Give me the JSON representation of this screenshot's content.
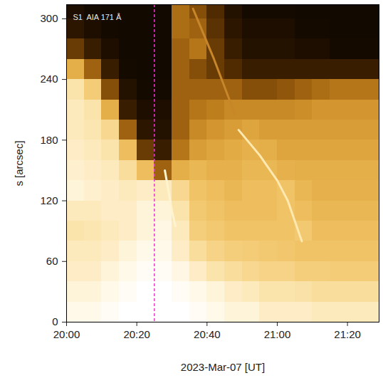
{
  "chart_data": {
    "type": "heatmap",
    "annotation": "S1  AIA 171 Å",
    "xlabel": "2023-Mar-07 [UT]",
    "ylabel": "s [arcsec]",
    "xlim": [
      "2023-03-07T20:00",
      "2023-03-07T21:29"
    ],
    "xticks": [
      {
        "value": "2023-03-07T20:00",
        "label": "20:00"
      },
      {
        "value": "2023-03-07T20:20",
        "label": "20:20"
      },
      {
        "value": "2023-03-07T20:40",
        "label": "20:40"
      },
      {
        "value": "2023-03-07T21:00",
        "label": "21:00"
      },
      {
        "value": "2023-03-07T21:20",
        "label": "21:20"
      }
    ],
    "ylim": [
      0,
      314
    ],
    "yticks": [
      0,
      60,
      120,
      180,
      240,
      300
    ],
    "heatmap": {
      "x_edges": [
        "2023-03-07T20:00",
        "2023-03-07T20:05",
        "2023-03-07T20:10",
        "2023-03-07T20:15",
        "2023-03-07T20:20",
        "2023-03-07T20:25",
        "2023-03-07T20:30",
        "2023-03-07T20:35",
        "2023-03-07T20:40",
        "2023-03-07T20:45",
        "2023-03-07T20:50",
        "2023-03-07T20:55",
        "2023-03-07T21:00",
        "2023-03-07T21:05",
        "2023-03-07T21:10",
        "2023-03-07T21:15",
        "2023-03-07T21:20",
        "2023-03-07T21:25",
        "2023-03-07T21:30"
      ],
      "y_edges": [
        0,
        20,
        40,
        60,
        80,
        100,
        120,
        140,
        160,
        180,
        200,
        220,
        240,
        260,
        280,
        300,
        320
      ],
      "zlim": [
        0,
        1
      ],
      "values": [
        [
          0.9,
          0.9,
          0.95,
          1,
          1,
          1,
          1,
          0.95,
          0.9,
          0.85,
          0.85,
          0.8,
          0.8,
          0.8,
          0.78,
          0.78,
          0.78,
          0.78
        ],
        [
          0.85,
          0.85,
          0.9,
          0.95,
          1,
          1,
          0.95,
          0.9,
          0.85,
          0.8,
          0.78,
          0.75,
          0.75,
          0.74,
          0.72,
          0.72,
          0.72,
          0.72
        ],
        [
          0.8,
          0.8,
          0.85,
          0.9,
          0.95,
          0.95,
          0.88,
          0.8,
          0.75,
          0.72,
          0.7,
          0.68,
          0.68,
          0.66,
          0.66,
          0.65,
          0.65,
          0.65
        ],
        [
          0.78,
          0.78,
          0.8,
          0.85,
          0.9,
          0.9,
          0.8,
          0.72,
          0.68,
          0.66,
          0.65,
          0.64,
          0.63,
          0.62,
          0.62,
          0.62,
          0.62,
          0.62
        ],
        [
          0.75,
          0.76,
          0.78,
          0.8,
          0.85,
          0.88,
          0.78,
          0.66,
          0.64,
          0.62,
          0.62,
          0.62,
          0.62,
          0.64,
          0.6,
          0.6,
          0.6,
          0.6
        ],
        [
          0.78,
          0.78,
          0.8,
          0.8,
          0.85,
          0.85,
          0.75,
          0.64,
          0.62,
          0.6,
          0.6,
          0.6,
          0.62,
          0.6,
          0.58,
          0.58,
          0.58,
          0.58
        ],
        [
          0.85,
          0.82,
          0.8,
          0.78,
          0.8,
          0.78,
          0.7,
          0.62,
          0.6,
          0.58,
          0.6,
          0.6,
          0.62,
          0.58,
          0.56,
          0.56,
          0.56,
          0.56
        ],
        [
          0.82,
          0.8,
          0.78,
          0.72,
          0.6,
          0.35,
          0.55,
          0.58,
          0.56,
          0.56,
          0.58,
          0.58,
          0.56,
          0.55,
          0.55,
          0.55,
          0.55,
          0.55
        ],
        [
          0.8,
          0.78,
          0.75,
          0.6,
          0.25,
          0.15,
          0.4,
          0.5,
          0.52,
          0.54,
          0.56,
          0.55,
          0.52,
          0.52,
          0.52,
          0.52,
          0.52,
          0.52
        ],
        [
          0.78,
          0.76,
          0.7,
          0.35,
          0.12,
          0.1,
          0.35,
          0.45,
          0.48,
          0.5,
          0.52,
          0.5,
          0.5,
          0.5,
          0.5,
          0.5,
          0.5,
          0.5
        ],
        [
          0.78,
          0.75,
          0.55,
          0.15,
          0.08,
          0.08,
          0.35,
          0.4,
          0.42,
          0.45,
          0.45,
          0.45,
          0.45,
          0.46,
          0.48,
          0.48,
          0.48,
          0.48
        ],
        [
          0.75,
          0.65,
          0.3,
          0.1,
          0.06,
          0.06,
          0.35,
          0.35,
          0.35,
          0.35,
          0.3,
          0.3,
          0.32,
          0.35,
          0.38,
          0.4,
          0.4,
          0.4
        ],
        [
          0.55,
          0.35,
          0.15,
          0.06,
          0.05,
          0.05,
          0.35,
          0.3,
          0.25,
          0.2,
          0.15,
          0.15,
          0.15,
          0.15,
          0.15,
          0.15,
          0.15,
          0.15
        ],
        [
          0.25,
          0.15,
          0.08,
          0.05,
          0.05,
          0.05,
          0.35,
          0.4,
          0.25,
          0.15,
          0.1,
          0.1,
          0.1,
          0.08,
          0.08,
          0.06,
          0.06,
          0.06
        ],
        [
          0.12,
          0.08,
          0.06,
          0.05,
          0.05,
          0.05,
          0.38,
          0.35,
          0.22,
          0.12,
          0.08,
          0.08,
          0.08,
          0.06,
          0.06,
          0.05,
          0.05,
          0.05
        ],
        [
          0.08,
          0.06,
          0.05,
          0.05,
          0.05,
          0.05,
          0.38,
          0.3,
          0.2,
          0.1,
          0.06,
          0.06,
          0.06,
          0.05,
          0.05,
          0.05,
          0.05,
          0.05
        ]
      ]
    },
    "overlays": [
      {
        "color": "#fff4d0",
        "x": [
          "2023-03-07T20:28",
          "2023-03-07T20:29",
          "2023-03-07T20:30",
          "2023-03-07T20:31"
        ],
        "y": [
          150,
          130,
          110,
          95
        ]
      },
      {
        "color": "#ffe9b0",
        "x": [
          "2023-03-07T20:49",
          "2023-03-07T20:55",
          "2023-03-07T21:00",
          "2023-03-07T21:03",
          "2023-03-07T21:07"
        ],
        "y": [
          190,
          165,
          140,
          120,
          80
        ]
      },
      {
        "color": "#c8862a",
        "x": [
          "2023-03-07T20:36",
          "2023-03-07T20:42",
          "2023-03-07T20:48"
        ],
        "y": [
          310,
          260,
          205
        ]
      }
    ],
    "vline": {
      "x": "2023-03-07T20:25",
      "color": "#e040c0",
      "line_style": "dashed"
    }
  }
}
